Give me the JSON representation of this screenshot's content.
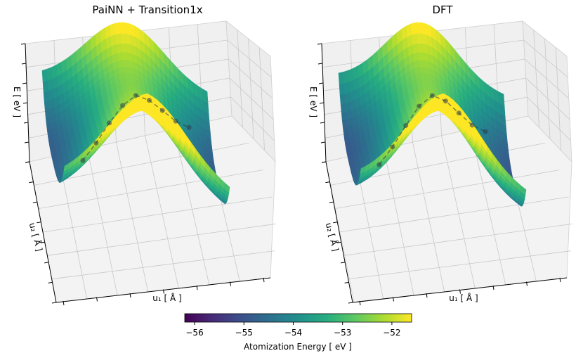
{
  "figure": {
    "colormap": "viridis",
    "colors": {
      "viridis": [
        "#440154",
        "#472c7a",
        "#3b518b",
        "#2c718e",
        "#21908d",
        "#27ad81",
        "#5cc863",
        "#aadc32",
        "#fde725"
      ],
      "pane": "#f0f0f0",
      "grid": "#c8c8c8",
      "path": "#2d3a4a"
    }
  },
  "chart_data": [
    {
      "type": "surface",
      "title": "PaiNN + Transition1x",
      "xlabel": "u₁ [ Å ]",
      "ylabel": "u₂ [ Å ]",
      "zlabel": "E [ eV ]",
      "zlim": [
        -56.2,
        -51.5
      ],
      "grid": true,
      "path_points": 9
    },
    {
      "type": "surface",
      "title": "DFT",
      "xlabel": "u₁ [ Å ]",
      "ylabel": "u₂ [ Å ]",
      "zlabel": "E [ eV ]",
      "zlim": [
        -56.2,
        -51.5
      ],
      "grid": true,
      "path_points": 9
    }
  ],
  "colorbar": {
    "label": "Atomization Energy [ eV ]",
    "range": [
      -56.2,
      -51.6
    ],
    "ticks": [
      {
        "value": -56,
        "label": "−56"
      },
      {
        "value": -55,
        "label": "−55"
      },
      {
        "value": -54,
        "label": "−54"
      },
      {
        "value": -53,
        "label": "−53"
      },
      {
        "value": -52,
        "label": "−52"
      }
    ]
  }
}
